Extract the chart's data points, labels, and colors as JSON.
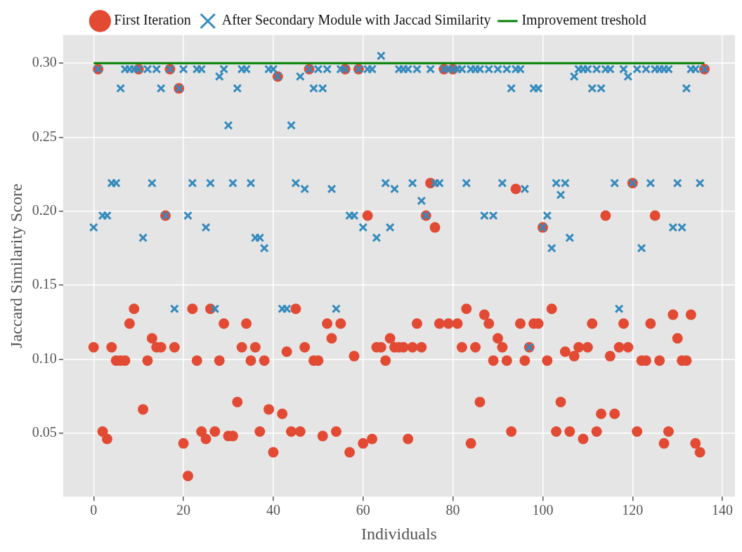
{
  "chart_data": {
    "type": "scatter",
    "xlabel": "Individuals",
    "ylabel": "Jaccard Similarity Score",
    "x": [
      0,
      1,
      2,
      3,
      4,
      5,
      6,
      7,
      8,
      9,
      10,
      11,
      12,
      13,
      14,
      15,
      16,
      17,
      18,
      19,
      20,
      21,
      22,
      23,
      24,
      25,
      26,
      27,
      28,
      29,
      30,
      31,
      32,
      33,
      34,
      35,
      36,
      37,
      38,
      39,
      40,
      41,
      42,
      43,
      44,
      45,
      46,
      47,
      48,
      49,
      50,
      51,
      52,
      53,
      54,
      55,
      56,
      57,
      58,
      59,
      60,
      61,
      62,
      63,
      64,
      65,
      66,
      67,
      68,
      69,
      70,
      71,
      72,
      73,
      74,
      75,
      76,
      77,
      78,
      79,
      80,
      81,
      82,
      83,
      84,
      85,
      86,
      87,
      88,
      89,
      90,
      91,
      92,
      93,
      94,
      95,
      96,
      97,
      98,
      99,
      100,
      101,
      102,
      103,
      104,
      105,
      106,
      107,
      108,
      109,
      110,
      111,
      112,
      113,
      114,
      115,
      116,
      117,
      118,
      119,
      120,
      121,
      122,
      123,
      124,
      125,
      126,
      127,
      128,
      129,
      130,
      131,
      132,
      133,
      134,
      135,
      136
    ],
    "xlim": [
      -6.8,
      142.8
    ],
    "xticks": [
      0,
      20,
      40,
      60,
      80,
      100,
      120,
      140
    ],
    "ylim": [
      0.007,
      0.319
    ],
    "yticks": [
      0.05,
      {
        "value": 0.1,
        "label": "0.10"
      },
      0.15,
      {
        "value": 0.2,
        "label": "0.20"
      },
      0.25,
      {
        "value": 0.3,
        "label": "0.30"
      }
    ],
    "grid": true,
    "legend": "top",
    "series": [
      {
        "name": "First Iteration",
        "color": "#e24a33",
        "marker": "circle",
        "values": [
          0.108,
          0.296,
          0.051,
          0.046,
          0.108,
          0.099,
          0.099,
          0.099,
          0.124,
          0.134,
          0.296,
          0.066,
          0.099,
          0.114,
          0.108,
          0.108,
          0.197,
          0.296,
          0.108,
          0.283,
          0.043,
          0.021,
          0.134,
          0.099,
          0.051,
          0.046,
          0.134,
          0.051,
          0.099,
          0.124,
          0.048,
          0.048,
          0.071,
          0.108,
          0.124,
          0.099,
          0.108,
          0.051,
          0.099,
          0.066,
          0.037,
          0.291,
          0.063,
          0.105,
          0.051,
          0.134,
          0.051,
          0.108,
          0.296,
          0.099,
          0.099,
          0.048,
          0.124,
          0.114,
          0.051,
          0.124,
          0.296,
          0.037,
          0.102,
          0.296,
          0.043,
          0.197,
          0.046,
          0.108,
          0.108,
          0.099,
          0.114,
          0.108,
          0.108,
          0.108,
          0.046,
          0.108,
          0.124,
          0.108,
          0.197,
          0.219,
          0.189,
          0.124,
          0.296,
          0.124,
          0.296,
          0.124,
          0.108,
          0.134,
          0.043,
          0.108,
          0.071,
          0.13,
          0.124,
          0.099,
          0.114,
          0.108,
          0.099,
          0.051,
          0.215,
          0.124,
          0.099,
          0.108,
          0.124,
          0.124,
          0.189,
          0.099,
          0.134,
          0.051,
          0.071,
          0.105,
          0.051,
          0.102,
          0.108,
          0.046,
          0.108,
          0.124,
          0.051,
          0.063,
          0.197,
          0.102,
          0.063,
          0.108,
          0.124,
          0.108,
          0.219,
          0.051,
          0.099,
          0.099,
          0.124,
          0.197,
          0.099,
          0.043,
          0.051,
          0.13,
          0.114,
          0.099,
          0.099,
          0.13,
          0.043,
          0.037,
          0.296
        ]
      },
      {
        "name": "After Secondary Module with Jaccad Similarity",
        "color": "#348abd",
        "marker": "cross",
        "values": [
          0.189,
          0.296,
          0.197,
          0.197,
          0.219,
          0.219,
          0.283,
          0.296,
          0.296,
          0.296,
          0.296,
          0.182,
          0.296,
          0.219,
          0.296,
          0.283,
          0.197,
          0.296,
          0.134,
          0.283,
          0.296,
          0.197,
          0.219,
          0.296,
          0.296,
          0.189,
          0.219,
          0.134,
          0.291,
          0.296,
          0.258,
          0.219,
          0.283,
          0.296,
          0.296,
          0.219,
          0.182,
          0.182,
          0.175,
          0.296,
          0.296,
          0.291,
          0.134,
          0.134,
          0.258,
          0.219,
          0.291,
          0.215,
          0.296,
          0.283,
          0.296,
          0.283,
          0.296,
          0.215,
          0.134,
          0.296,
          0.296,
          0.197,
          0.197,
          0.296,
          0.189,
          0.296,
          0.296,
          0.182,
          0.305,
          0.219,
          0.189,
          0.215,
          0.296,
          0.296,
          0.296,
          0.219,
          0.296,
          0.207,
          0.197,
          0.296,
          0.219,
          0.219,
          0.296,
          0.296,
          0.296,
          0.296,
          0.296,
          0.219,
          0.296,
          0.296,
          0.296,
          0.197,
          0.296,
          0.197,
          0.296,
          0.219,
          0.296,
          0.283,
          0.296,
          0.296,
          0.215,
          0.108,
          0.283,
          0.283,
          0.189,
          0.197,
          0.175,
          0.219,
          0.211,
          0.219,
          0.182,
          0.291,
          0.296,
          0.296,
          0.296,
          0.283,
          0.296,
          0.283,
          0.296,
          0.296,
          0.219,
          0.134,
          0.296,
          0.291,
          0.219,
          0.296,
          0.175,
          0.296,
          0.219,
          0.296,
          0.296,
          0.296,
          0.296,
          0.189,
          0.219,
          0.189,
          0.283,
          0.296,
          0.296,
          0.219,
          0.296
        ]
      },
      {
        "name": "Improvement treshold",
        "color": "#008000",
        "type": "line",
        "marker": "none",
        "x": [
          0,
          136
        ],
        "values": [
          0.3,
          0.3
        ]
      }
    ]
  }
}
